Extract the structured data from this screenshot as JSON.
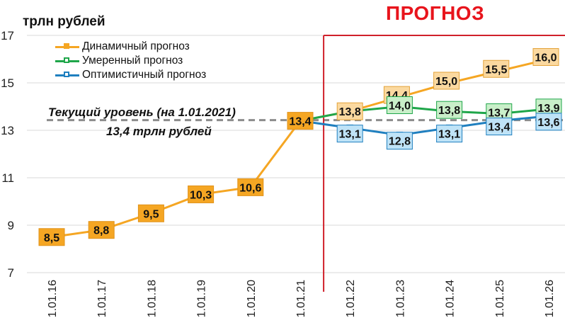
{
  "chart_data": {
    "type": "line",
    "title": "ПРОГНОЗ",
    "ylabel": "трлн рублей",
    "ylim": [
      7,
      17
    ],
    "yticks": [
      "7",
      "9",
      "11",
      "13",
      "15",
      "17"
    ],
    "categories": [
      "1.01.16",
      "1.01.17",
      "1.01.18",
      "1.01.19",
      "1.01.20",
      "1.01.21",
      "1.01.22",
      "1.01.23",
      "1.01.24",
      "1.01.25",
      "1.01.26"
    ],
    "forecast_start_category": "1.01.22",
    "series": [
      {
        "name": "Динамичный прогноз",
        "color": "#f5a623",
        "label_fill": "#f5a623",
        "forecast_label_fill": "#fbd9a0",
        "marker": "filled-square",
        "values": [
          8.5,
          8.8,
          9.5,
          10.3,
          10.6,
          13.4,
          13.8,
          14.4,
          15.0,
          15.5,
          16.0
        ],
        "labels": [
          "8,5",
          "8,8",
          "9,5",
          "10,3",
          "10,6",
          "13,4",
          "13,8",
          "14,4",
          "15,0",
          "15,5",
          "16,0"
        ]
      },
      {
        "name": "Умеренный прогноз",
        "color": "#1fa64a",
        "label_fill": "#c9efc9",
        "marker": "hollow-square",
        "values": [
          null,
          null,
          null,
          null,
          null,
          13.4,
          13.8,
          14.0,
          13.8,
          13.7,
          13.9
        ],
        "labels": [
          null,
          null,
          null,
          null,
          null,
          null,
          null,
          "14,0",
          "13,8",
          "13,7",
          "13,9"
        ]
      },
      {
        "name": "Оптимистичный прогноз",
        "color": "#1f7fbf",
        "label_fill": "#bfe3f7",
        "marker": "hollow-square",
        "values": [
          null,
          null,
          null,
          null,
          null,
          13.4,
          13.1,
          12.8,
          13.1,
          13.4,
          13.6
        ],
        "labels": [
          null,
          null,
          null,
          null,
          null,
          null,
          "13,1",
          "12,8",
          "13,1",
          "13,4",
          "13,6"
        ]
      }
    ],
    "reference_line": {
      "value": 13.4,
      "label": "Текущий уровень (на 1.01.2021)",
      "value_label": "13,4 трлн рублей",
      "color": "#8c8c8c"
    },
    "forecast_divider_color": "#d0202a",
    "grid": "horizontal",
    "legend_position": "top-left"
  }
}
